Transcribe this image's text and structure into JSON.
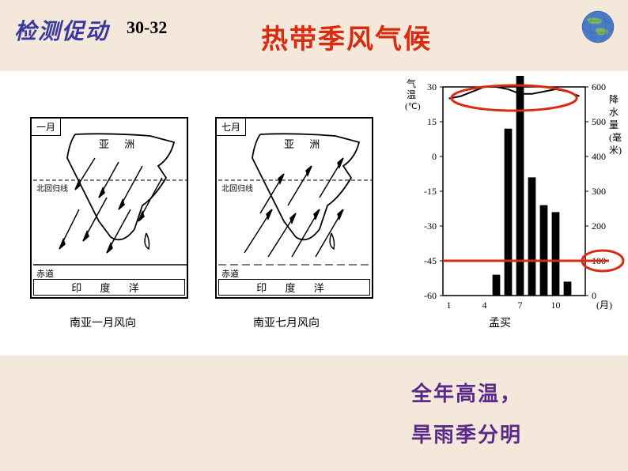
{
  "header": {
    "left": "检测促动",
    "sub": "30-32"
  },
  "title": "热带季风气候",
  "maps": {
    "jan": {
      "tag": "一月",
      "continent": "亚 洲",
      "tropic_label": "北回归线",
      "equator_label": "赤道",
      "ocean": "印 度 洋",
      "caption": "南亚一月风向"
    },
    "jul": {
      "tag": "七月",
      "continent": "亚 洲",
      "tropic_label": "北回归线",
      "equator_label": "赤道",
      "ocean": "印 度 洋",
      "caption": "南亚七月风向"
    }
  },
  "chart": {
    "caption": "孟买",
    "left_axis_label": "气温(℃)",
    "right_axis_label": "降水量(毫米)",
    "x_axis_label": "(月)",
    "left_ticks": [
      "30",
      "15",
      "0",
      "-15",
      "-30",
      "-45",
      "-60"
    ],
    "right_ticks": [
      "600",
      "500",
      "400",
      "300",
      "200",
      "100",
      "0"
    ],
    "x_ticks": [
      "1",
      "4",
      "7",
      "10"
    ],
    "temp_line_points": [
      {
        "month": 1,
        "value": 25
      },
      {
        "month": 2,
        "value": 26
      },
      {
        "month": 3,
        "value": 28
      },
      {
        "month": 4,
        "value": 30
      },
      {
        "month": 5,
        "value": 30
      },
      {
        "month": 6,
        "value": 29
      },
      {
        "month": 7,
        "value": 27
      },
      {
        "month": 8,
        "value": 27
      },
      {
        "month": 9,
        "value": 28
      },
      {
        "month": 10,
        "value": 29
      },
      {
        "month": 11,
        "value": 28
      },
      {
        "month": 12,
        "value": 26
      }
    ],
    "precip_bars": [
      0,
      0,
      0,
      0,
      60,
      480,
      620,
      340,
      260,
      240,
      40,
      0
    ],
    "temp_ylim": [
      -60,
      30
    ],
    "precip_ylim": [
      0,
      600
    ],
    "bar_color": "#000000",
    "line_color": "#000000",
    "circle_color": "#d82b10",
    "circle_width": 3
  },
  "annotations": {
    "line1": "全年高温，",
    "line2": "旱雨季分明"
  }
}
